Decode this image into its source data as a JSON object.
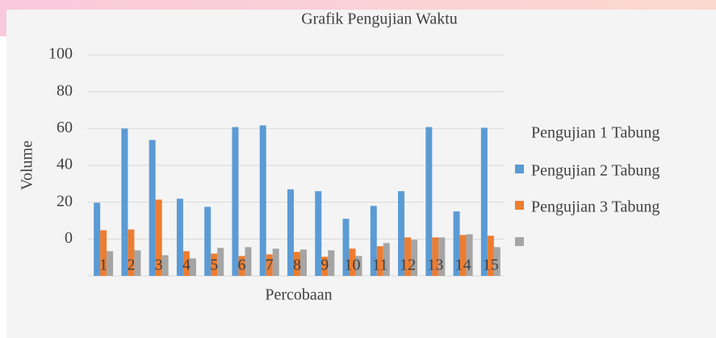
{
  "chart_data": {
    "type": "bar",
    "title": "Grafik Pengujian Waktu",
    "x_label": "Percobaan",
    "y_label": "Volume",
    "legend_heading": "Pengujian 1 Tabung",
    "categories": [
      "1",
      "2",
      "3",
      "4",
      "5",
      "6",
      "7",
      "8",
      "9",
      "10",
      "11",
      "12",
      "13",
      "14",
      "15"
    ],
    "series": [
      {
        "name": "Pengujian 2 Tabung",
        "color": "#5b9bd5",
        "values": [
          19.7,
          60,
          53.8,
          21.9,
          17.5,
          60.8,
          61.7,
          27,
          26,
          11,
          18,
          26,
          60.8,
          15,
          60.4
        ]
      },
      {
        "name": "Pengujian 3 Tabung",
        "color": "#ed7d31",
        "values": [
          4.8,
          5.2,
          21.4,
          -6.6,
          -7.9,
          -9.2,
          -8.3,
          -7,
          -9.6,
          -5.2,
          -3.9,
          0.9,
          0.9,
          2.2,
          1.8
        ]
      },
      {
        "name": null,
        "color": "#a5a5a5",
        "values": [
          -6.6,
          -6.1,
          -8.8,
          -10.5,
          -4.8,
          -4.4,
          -5.2,
          -5.7,
          -6.1,
          -9.2,
          -2.2,
          -0.4,
          0.9,
          2.6,
          -4.4
        ]
      }
    ],
    "ylim": [
      -20,
      100
    ],
    "yticks": [
      0,
      20,
      40,
      60,
      80,
      100
    ],
    "grid": true,
    "legend": "right"
  }
}
